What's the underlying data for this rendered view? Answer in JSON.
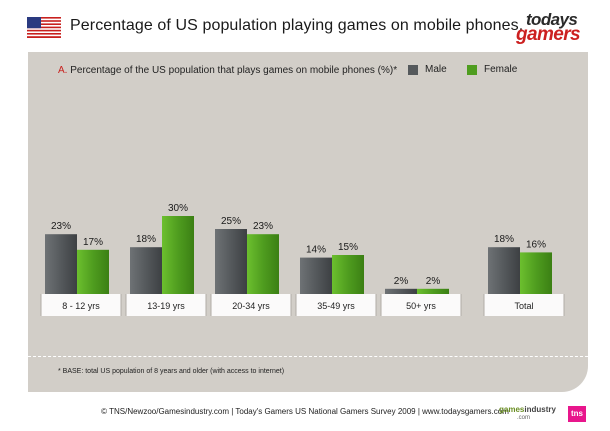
{
  "header": {
    "title": "Percentage of US population playing games on mobile phones.",
    "flag_icon": "us-flag-icon",
    "brand": {
      "line1": "todays",
      "line2": "gamers"
    }
  },
  "chart_data": {
    "type": "bar",
    "title_letter": "A.",
    "title": "Percentage of the US population that plays games on mobile phones (%)*",
    "categories": [
      "8 - 12 yrs",
      "13-19 yrs",
      "20-34 yrs",
      "35-49 yrs",
      "50+ yrs",
      "Total"
    ],
    "series": [
      {
        "name": "Male",
        "values": [
          23,
          18,
          25,
          14,
          2,
          18
        ],
        "labels": [
          "23%",
          "18%",
          "25%",
          "14%",
          "2%",
          "18%"
        ],
        "color": "#55595c"
      },
      {
        "name": "Female",
        "values": [
          17,
          30,
          23,
          15,
          2,
          16
        ],
        "labels": [
          "17%",
          "30%",
          "23%",
          "15%",
          "2%",
          "16%"
        ],
        "color": "#4f9d1f"
      }
    ],
    "ylim": [
      0,
      30
    ],
    "grid": false,
    "legend_position": "top-right"
  },
  "footnote": "* BASE: total US population of 8 years and older (with access to internet)",
  "source": "© TNS/Newzoo/Gamesindustry.com | Today's Gamers US National Gamers Survey 2009 | www.todaysgamers.com",
  "logos": {
    "gamesindustry": {
      "part1": "games",
      "part2": "industry",
      "suffix": ".com"
    },
    "tns": "tns"
  }
}
